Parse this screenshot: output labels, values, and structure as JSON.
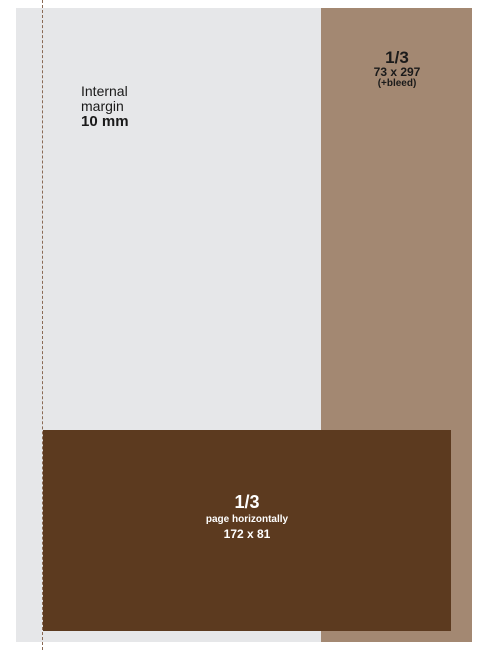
{
  "margin": {
    "line1": "Internal",
    "line2": "margin",
    "value": "10 mm"
  },
  "vertical_ad": {
    "fraction": "1/3",
    "dimensions": "73 x 297",
    "bleed": "(+bleed)"
  },
  "horizontal_ad": {
    "fraction": "1/3",
    "description": "page horizontally",
    "dimensions": "172 x 81"
  },
  "colors": {
    "page": "#e6e7e9",
    "vertical_ad": "#a38872",
    "horizontal_ad": "#5c3a1f",
    "margin_line": "#8a6a55"
  }
}
